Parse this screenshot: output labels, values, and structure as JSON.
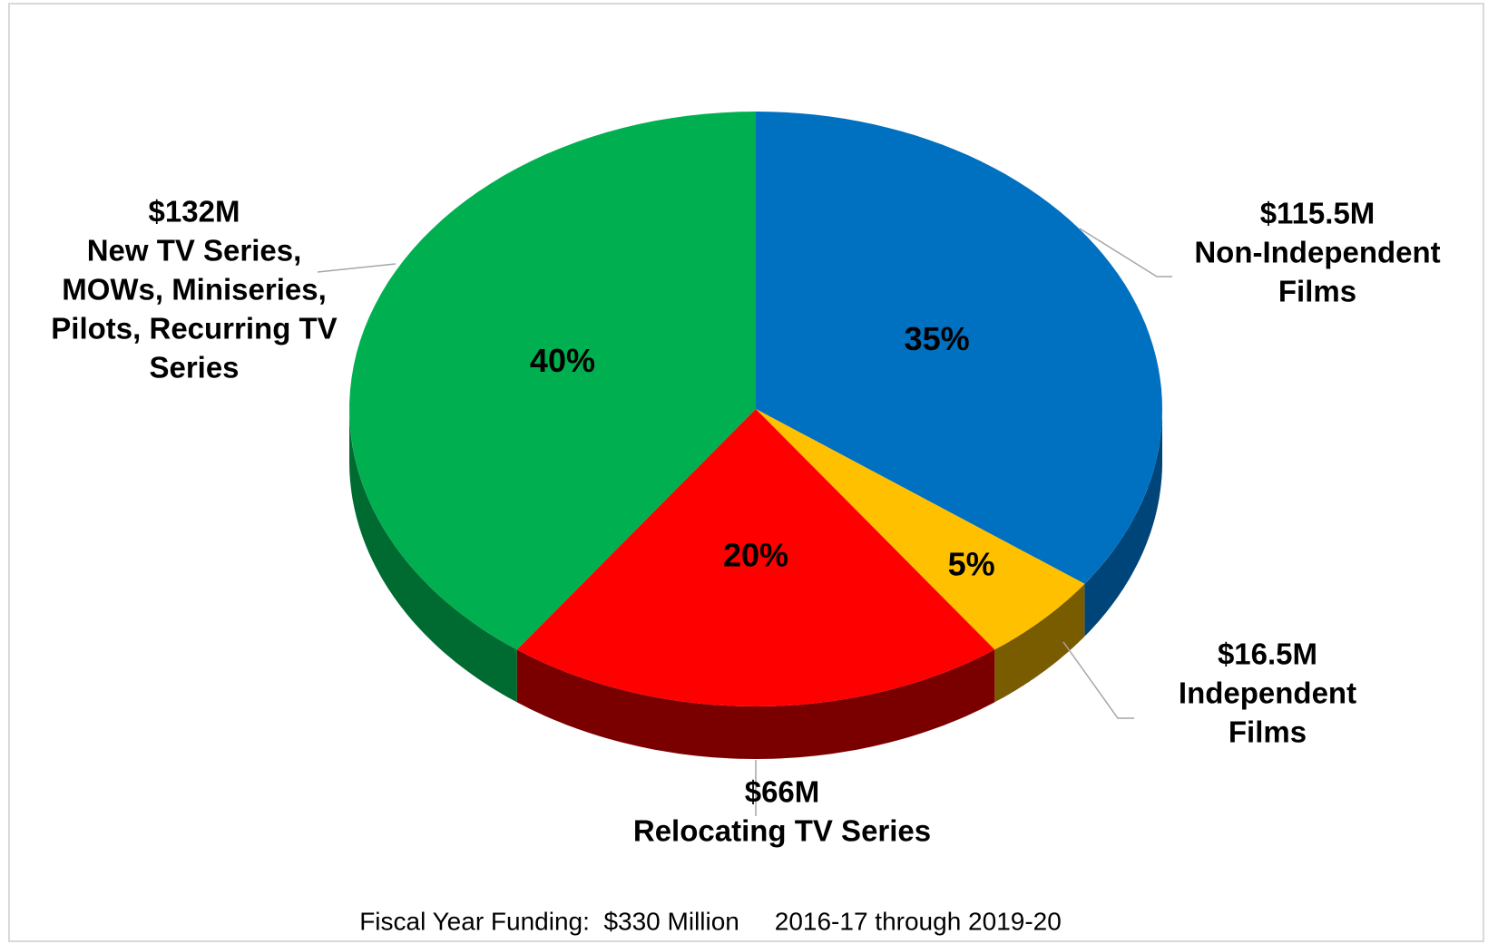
{
  "chart_data": {
    "type": "pie",
    "categories": [
      [
        "Non-Independent",
        "Films"
      ],
      [
        "Independent",
        "Films"
      ],
      [
        "Relocating TV Series"
      ],
      [
        "New TV Series,",
        "MOWs, Miniseries,",
        "Pilots, Recurring TV",
        "Series"
      ]
    ],
    "amount_labels": [
      "$115.5M",
      "$16.5M",
      "$66M",
      "$132M"
    ],
    "values": [
      35,
      5,
      20,
      40
    ],
    "value_labels": [
      "35%",
      "5%",
      "20%",
      "40%"
    ],
    "colors": [
      "#0070c0",
      "#ffc000",
      "#ff0000",
      "#00b050"
    ],
    "side_colors": [
      "#00457a",
      "#7a5c00",
      "#7a0000",
      "#006b30"
    ],
    "note": "Fiscal Year Funding:  $330 Million     2016-17 through 2019-20"
  }
}
